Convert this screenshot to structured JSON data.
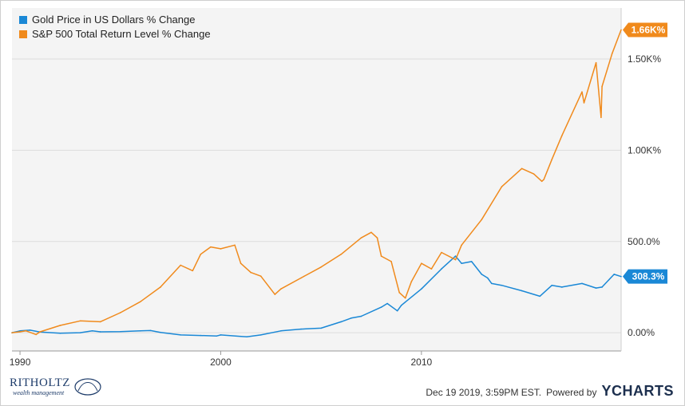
{
  "legend": {
    "gold_label": "Gold Price in US Dollars % Change",
    "sp_label": "S&P 500 Total Return Level % Change",
    "gold_color": "#1a88d6",
    "sp_color": "#f08a1c"
  },
  "footer": {
    "timestamp": "Dec 19 2019, 3:59PM EST.",
    "powered_by": "Powered by",
    "brand": "YCHARTS"
  },
  "logo": {
    "name": "RITHOLTZ",
    "tagline": "wealth management"
  },
  "chart_data": {
    "type": "line",
    "title": "",
    "xlabel": "",
    "ylabel": "",
    "x_ticks": [
      "1990",
      "2000",
      "2010"
    ],
    "y_ticks": [
      "0.00%",
      "500.0%",
      "1.00K%",
      "1.50K%"
    ],
    "xlim": [
      1989.6,
      2019.95
    ],
    "ylim": [
      -100,
      1780
    ],
    "grid": true,
    "legend_position": "top-left",
    "series": [
      {
        "name": "Gold Price in US Dollars % Change",
        "color": "#1a88d6",
        "end_label": "308.3%",
        "x": [
          1989.6,
          1990.0,
          1990.5,
          1991.0,
          1992.0,
          1993.0,
          1993.6,
          1994.0,
          1995.0,
          1996.0,
          1996.5,
          1997.0,
          1998.0,
          1999.0,
          1999.8,
          2000.0,
          2001.0,
          2001.3,
          2002.0,
          2003.0,
          2004.0,
          2005.0,
          2006.0,
          2006.5,
          2007.0,
          2008.0,
          2008.3,
          2008.8,
          2009.0,
          2010.0,
          2011.0,
          2011.7,
          2012.0,
          2012.5,
          2013.0,
          2013.3,
          2013.5,
          2014.0,
          2015.0,
          2015.9,
          2016.5,
          2017.0,
          2018.0,
          2018.7,
          2019.0,
          2019.6,
          2019.95
        ],
        "y": [
          0,
          10,
          14,
          4,
          -3,
          0,
          10,
          5,
          6,
          10,
          12,
          2,
          -12,
          -15,
          -18,
          -12,
          -20,
          -22,
          -12,
          10,
          20,
          25,
          60,
          80,
          90,
          140,
          160,
          120,
          150,
          240,
          350,
          420,
          380,
          390,
          320,
          300,
          270,
          260,
          230,
          200,
          260,
          250,
          270,
          245,
          250,
          320,
          308
        ]
      },
      {
        "name": "S&P 500 Total Return Level % Change",
        "color": "#f08a1c",
        "end_label": "1.66K%",
        "x": [
          1989.6,
          1990.0,
          1990.3,
          1990.8,
          1991.0,
          1992.0,
          1993.0,
          1994.0,
          1995.0,
          1996.0,
          1997.0,
          1998.0,
          1998.6,
          1999.0,
          1999.5,
          2000.0,
          2000.7,
          2001.0,
          2001.5,
          2002.0,
          2002.7,
          2003.0,
          2004.0,
          2005.0,
          2006.0,
          2007.0,
          2007.5,
          2007.8,
          2008.0,
          2008.5,
          2008.9,
          2009.2,
          2009.5,
          2010.0,
          2010.5,
          2011.0,
          2011.7,
          2012.0,
          2013.0,
          2014.0,
          2015.0,
          2015.6,
          2016.0,
          2016.1,
          2016.5,
          2017.0,
          2018.0,
          2018.1,
          2018.7,
          2018.95,
          2019.0,
          2019.5,
          2019.95
        ],
        "y": [
          0,
          5,
          10,
          -10,
          5,
          40,
          65,
          60,
          110,
          170,
          250,
          370,
          340,
          430,
          470,
          460,
          480,
          380,
          330,
          310,
          210,
          240,
          300,
          360,
          430,
          520,
          550,
          520,
          420,
          390,
          220,
          190,
          280,
          380,
          350,
          440,
          400,
          480,
          620,
          800,
          900,
          870,
          830,
          840,
          950,
          1080,
          1320,
          1260,
          1480,
          1180,
          1350,
          1530,
          1660
        ]
      }
    ]
  }
}
